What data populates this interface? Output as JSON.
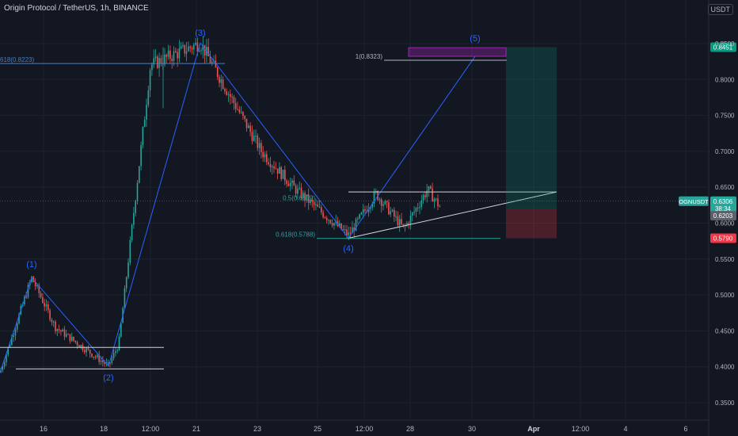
{
  "header": {
    "title": "Origin Protocol / TetherUS, 1h, BINANCE",
    "currency": "USDT"
  },
  "chart_data": {
    "type": "candlestick",
    "ylim": [
      0.33,
      0.86
    ],
    "y_ticks": [
      "0.8500",
      "0.8000",
      "0.7500",
      "0.7000",
      "0.6500",
      "0.6000",
      "0.5500",
      "0.5000",
      "0.4500",
      "0.4000",
      "0.3500"
    ],
    "x_ticks": [
      "16",
      "18",
      "12:00",
      "21",
      "23",
      "25",
      "12:00",
      "28",
      "30",
      "Apr",
      "12:00",
      "4",
      "6"
    ],
    "grid": true,
    "colors": {
      "up": "#26a69a",
      "down": "#ef5350",
      "wave": "#2962ff",
      "fib": "#4c7ec1",
      "background": "#131722"
    },
    "waves": [
      {
        "label": "(1)",
        "price": 0.524
      },
      {
        "label": "(2)",
        "price": 0.401
      },
      {
        "label": "(3)",
        "price": 0.851
      },
      {
        "label": "(4)",
        "price": 0.579
      },
      {
        "label": "(5)",
        "price": 0.8323
      }
    ],
    "fib_levels": [
      {
        "label": "618(0.8223)",
        "price": 0.8223
      },
      {
        "label": "1(0.8323)",
        "price": 0.8323
      },
      {
        "label": "0.5(0.6309)",
        "price": 0.6309
      },
      {
        "label": "0.618(0.5788)",
        "price": 0.5788
      }
    ],
    "horizontal_lines": [
      {
        "price": 0.427
      },
      {
        "price": 0.397
      },
      {
        "price": 0.6435
      }
    ],
    "position": {
      "entry": 0.6203,
      "target": 0.8451,
      "stop": 0.579
    },
    "price_labels": [
      {
        "name": "target",
        "text": "0.8451",
        "color": "#089981"
      },
      {
        "name": "current",
        "text": "0.6306",
        "sub": "38:34",
        "symbol": "OGNUSDT",
        "color": "#26a69a"
      },
      {
        "name": "entry",
        "text": "0.6203",
        "color": "#5d606b"
      },
      {
        "name": "stop",
        "text": "0.5790",
        "color": "#f23645"
      }
    ],
    "current_price": 0.6306
  }
}
